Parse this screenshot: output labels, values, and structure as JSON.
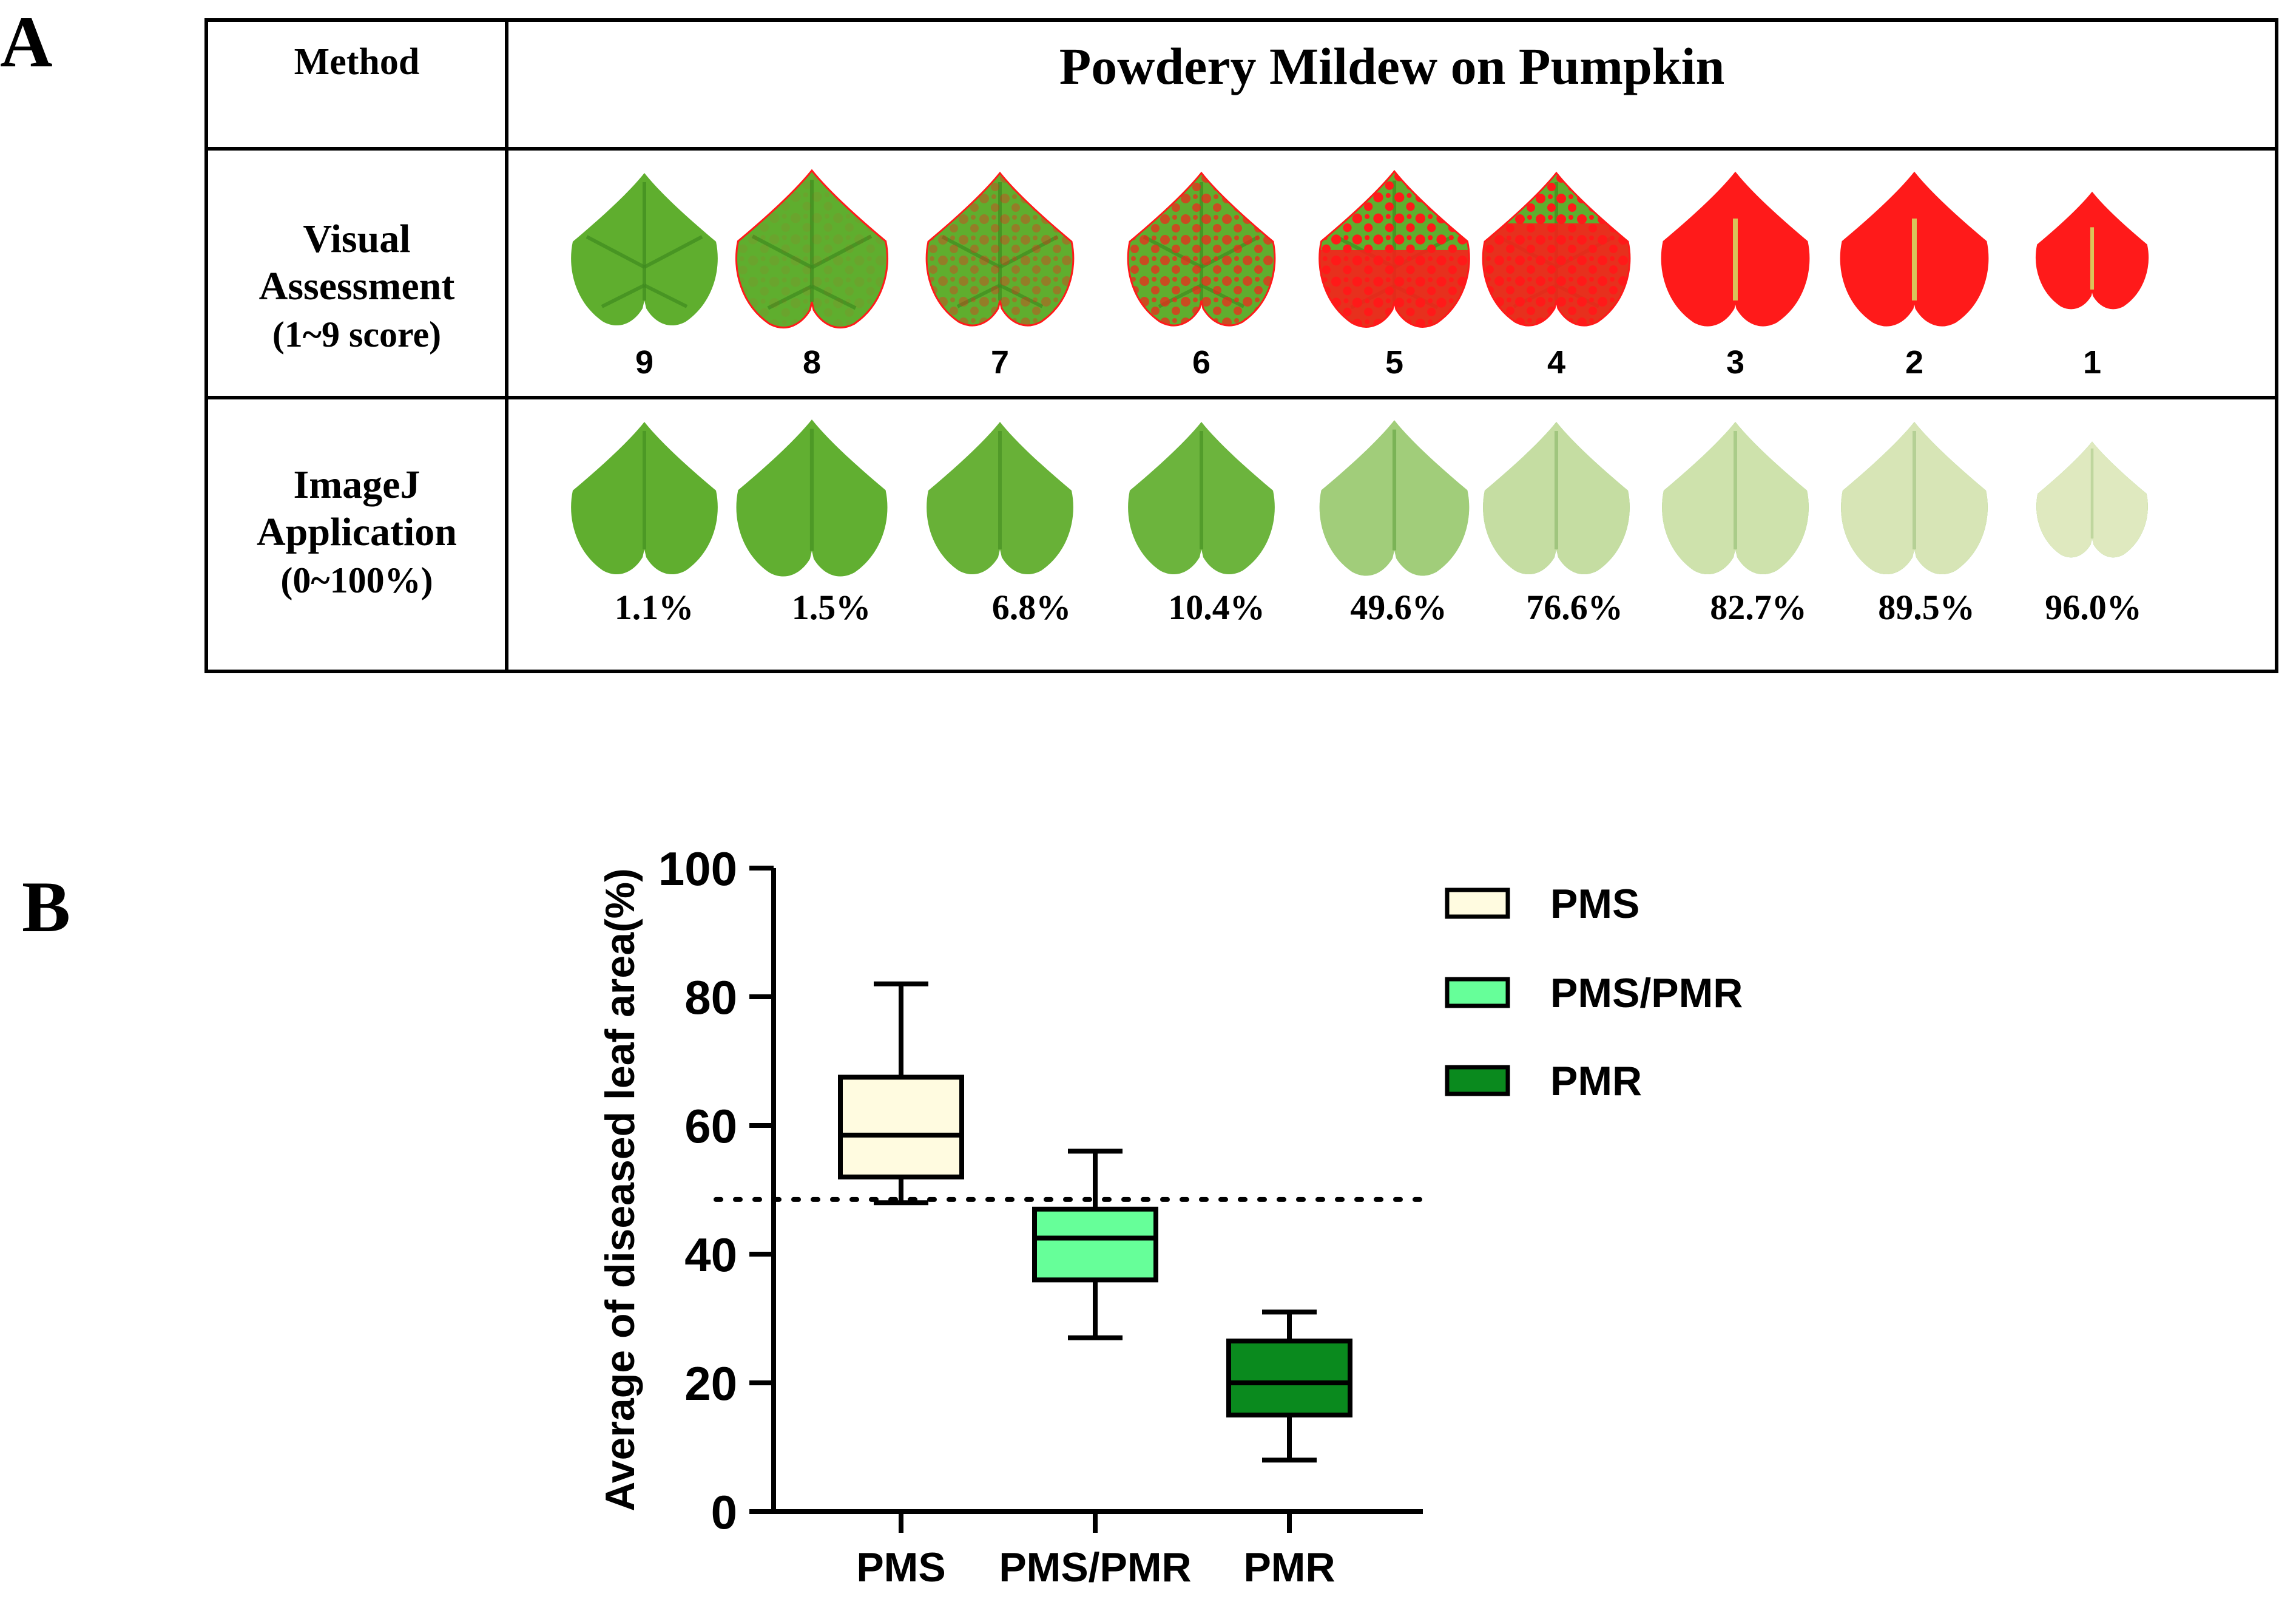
{
  "panelA": {
    "label": "A",
    "header": {
      "method": "Method",
      "title": "Powdery Mildew on Pumpkin"
    },
    "rows": [
      {
        "name": [
          "Visual",
          "Assessment",
          "(1~9 score)"
        ],
        "values": [
          "9",
          "8",
          "7",
          "6",
          "5",
          "4",
          "3",
          "2",
          "1"
        ],
        "disease_fraction": [
          0.0,
          0.03,
          0.15,
          0.3,
          0.55,
          0.72,
          0.88,
          0.95,
          0.98
        ]
      },
      {
        "name": [
          "ImageJ",
          "Application",
          "(0~100%)"
        ],
        "values": [
          "1.1%",
          "1.5%",
          "6.8%",
          "10.4%",
          "49.6%",
          "76.6%",
          "82.7%",
          "89.5%",
          "96.0%"
        ],
        "disease_fraction": [
          0.011,
          0.015,
          0.068,
          0.104,
          0.496,
          0.766,
          0.827,
          0.895,
          0.96
        ]
      }
    ],
    "colors": {
      "healthy": "#5fae2e",
      "healthy_dark": "#3f8a1f",
      "lesion": "#ff1a1a",
      "pale": "#dfe9bf"
    }
  },
  "panelB": {
    "label": "B",
    "chart_data": {
      "type": "box",
      "categories": [
        "PMS",
        "PMS/PMR",
        "PMR"
      ],
      "series": [
        {
          "name": "PMS",
          "min": 48,
          "q1": 52,
          "median": 58.5,
          "q3": 67.5,
          "max": 82,
          "color": "#fffbe0"
        },
        {
          "name": "PMS/PMR",
          "min": 27,
          "q1": 36,
          "median": 42.5,
          "q3": 47,
          "max": 56,
          "color": "#66ff99"
        },
        {
          "name": "PMR",
          "min": 8,
          "q1": 15,
          "median": 20,
          "q3": 26.5,
          "max": 31,
          "color": "#0a8a1e"
        }
      ],
      "reference_line": 48.5,
      "ylabel": "Average of diseased leaf area(%)",
      "ylim": [
        0,
        100
      ],
      "yticks": [
        "0",
        "20",
        "40",
        "60",
        "80",
        "100"
      ],
      "legend": [
        "PMS",
        "PMS/PMR",
        "PMR"
      ],
      "legend_position": "right",
      "grid": false
    }
  }
}
